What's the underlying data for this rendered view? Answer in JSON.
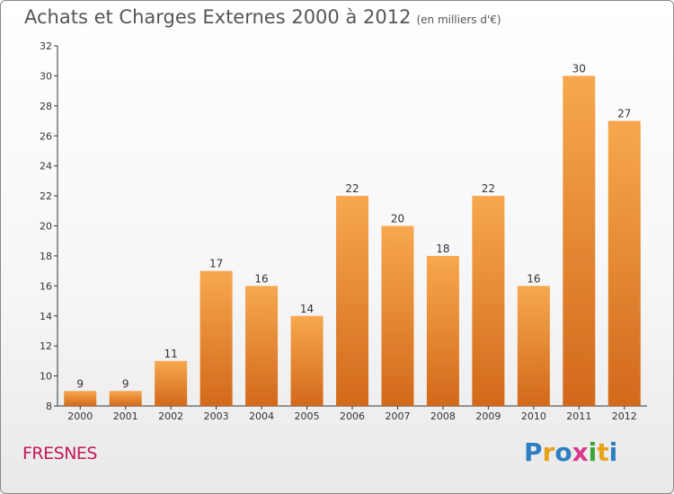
{
  "title": "Achats et Charges Externes 2000 à 2012",
  "subtitle": "(en milliers d'€)",
  "commune": "FRESNES",
  "logo": {
    "text": "Proxiti",
    "letters": [
      {
        "char": "P",
        "color": "#2e7fc1"
      },
      {
        "char": "r",
        "color": "#e8a21a"
      },
      {
        "char": "o",
        "color": "#2e7fc1"
      },
      {
        "char": "x",
        "color": "#d83a8c"
      },
      {
        "char": "i",
        "color": "#3aa637"
      },
      {
        "char": "t",
        "color": "#e8a21a"
      },
      {
        "char": "i",
        "color": "#2e7fc1"
      }
    ]
  },
  "colors": {
    "bar_top": "#f7a84f",
    "bar_bottom": "#d2691a",
    "axis": "#333333"
  },
  "chart_data": {
    "type": "bar",
    "categories": [
      "2000",
      "2001",
      "2002",
      "2003",
      "2004",
      "2005",
      "2006",
      "2007",
      "2008",
      "2009",
      "2010",
      "2011",
      "2012"
    ],
    "values": [
      9,
      9,
      11,
      17,
      16,
      14,
      22,
      20,
      18,
      22,
      16,
      30,
      27
    ],
    "title": "Achats et Charges Externes 2000 à 2012",
    "subtitle": "(en milliers d'€)",
    "xlabel": "",
    "ylabel": "",
    "ylim": [
      8,
      32
    ],
    "yticks": [
      8,
      10,
      12,
      14,
      16,
      18,
      20,
      22,
      24,
      26,
      28,
      30,
      32
    ],
    "grid": false,
    "data_labels": true
  }
}
